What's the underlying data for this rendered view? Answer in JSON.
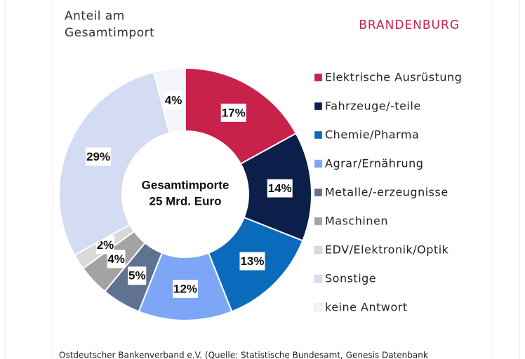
{
  "chart_data": {
    "type": "donut",
    "subtitle": [
      "Anteil am",
      "Gesamtimport"
    ],
    "region": "BRANDENBURG",
    "center_label": [
      "Gesamtimporte",
      "25 Mrd. Euro"
    ],
    "categories": [
      "Elektrische Ausrüstung",
      "Fahrzeuge/-teile",
      "Chemie/Pharma",
      "Agrar/Ernährung",
      "Metalle/-erzeugnisse",
      "Maschinen",
      "EDV/Elektronik/Optik",
      "Sonstige",
      "keine Antwort"
    ],
    "values": [
      17,
      14,
      13,
      12,
      5,
      4,
      2,
      29,
      4
    ],
    "value_labels": [
      "17%",
      "14%",
      "13%",
      "12%",
      "5%",
      "4%",
      "2%",
      "29%",
      "4%"
    ],
    "colors": [
      "#c8214a",
      "#0b1f4a",
      "#0a6bbd",
      "#7ea6f7",
      "#5f7391",
      "#a3a3a3",
      "#d9d9d9",
      "#d3dcf2",
      "#f3f5fb"
    ],
    "source": "Ostdeutscher Bankenverband e.V. (Quelle: Statistische Bundesamt, Genesis Datenbank"
  }
}
